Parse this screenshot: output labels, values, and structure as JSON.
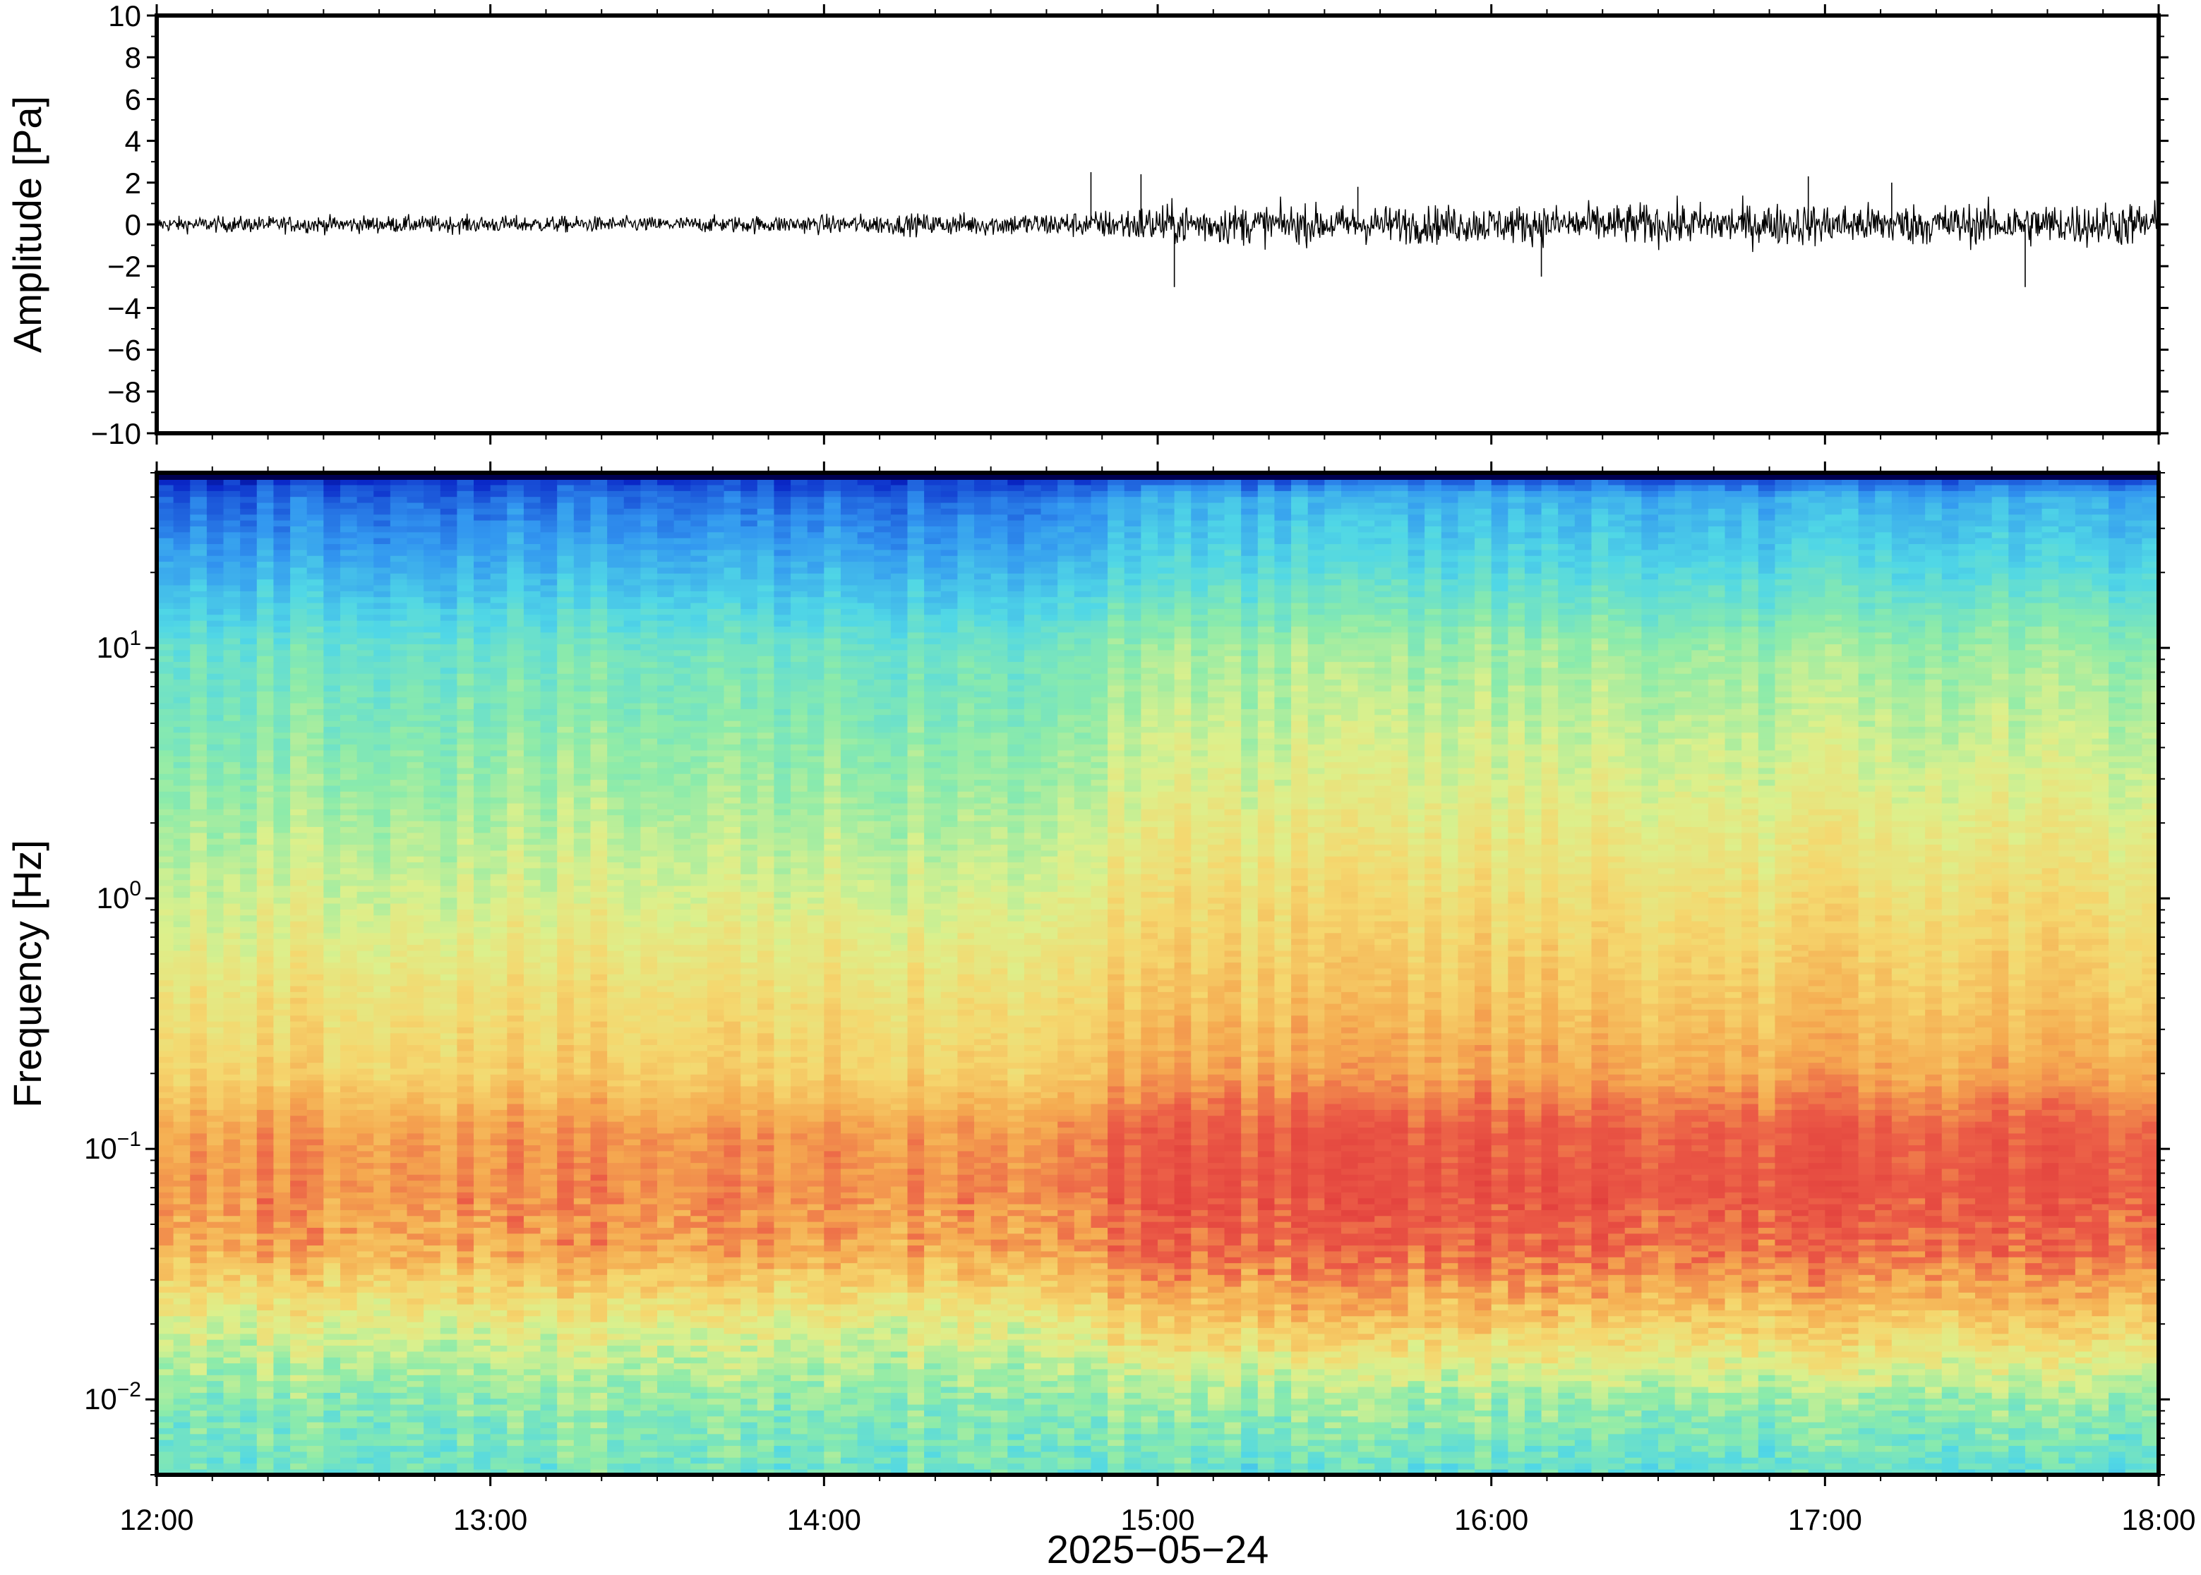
{
  "chart_data": [
    {
      "type": "line",
      "panel": "waveform",
      "ylabel": "Amplitude [Pa]",
      "ylim": [
        -10,
        10
      ],
      "yticks": [
        -10,
        -8,
        -6,
        -4,
        -2,
        0,
        2,
        4,
        6,
        8,
        10
      ],
      "xlim": [
        "12:00",
        "18:00"
      ],
      "grid": false,
      "envelope": {
        "x_hours": [
          12.0,
          12.5,
          13.0,
          13.5,
          14.0,
          14.5,
          14.8,
          15.0,
          15.5,
          16.0,
          16.5,
          17.0,
          17.5,
          18.0
        ],
        "y_amplitude": [
          0.4,
          0.45,
          0.45,
          0.4,
          0.5,
          0.6,
          0.7,
          1.1,
          1.0,
          1.0,
          1.1,
          1.1,
          1.1,
          1.2
        ]
      },
      "peaks": {
        "x_hours": [
          14.95,
          15.05,
          15.6,
          16.15,
          17.6,
          17.2,
          14.8,
          16.95
        ],
        "y_amplitude": [
          2.4,
          -3.0,
          1.8,
          -2.5,
          -3.0,
          2.0,
          2.5,
          2.3
        ]
      }
    },
    {
      "type": "heatmap",
      "panel": "spectrogram",
      "ylabel": "Frequency [Hz]",
      "yscale": "log",
      "ylim": [
        0.005,
        50
      ],
      "yticks": [
        {
          "base": "10",
          "exp": "−2",
          "value": 0.01
        },
        {
          "base": "10",
          "exp": "−1",
          "value": 0.1
        },
        {
          "base": "10",
          "exp": "0",
          "value": 1
        },
        {
          "base": "10",
          "exp": "1",
          "value": 10
        }
      ],
      "xticks": [
        "12:00",
        "13:00",
        "14:00",
        "15:00",
        "16:00",
        "17:00",
        "18:00"
      ],
      "xlabel": "2025−05−24",
      "colormap": "jet-like",
      "relative_power_profile": {
        "freq_hz": [
          0.005,
          0.01,
          0.02,
          0.04,
          0.07,
          0.12,
          0.2,
          0.4,
          1.0,
          3.0,
          10.0,
          20.0,
          40.0,
          50.0
        ],
        "before_15h": [
          0.45,
          0.5,
          0.62,
          0.8,
          0.84,
          0.82,
          0.72,
          0.68,
          0.6,
          0.52,
          0.45,
          0.32,
          0.2,
          0.1
        ],
        "after_15h": [
          0.42,
          0.52,
          0.72,
          0.88,
          0.92,
          0.9,
          0.8,
          0.74,
          0.68,
          0.6,
          0.52,
          0.4,
          0.3,
          0.12
        ]
      }
    }
  ],
  "colors": {
    "background": "#ffffff",
    "frame": "#000000",
    "trace": "#000000"
  }
}
